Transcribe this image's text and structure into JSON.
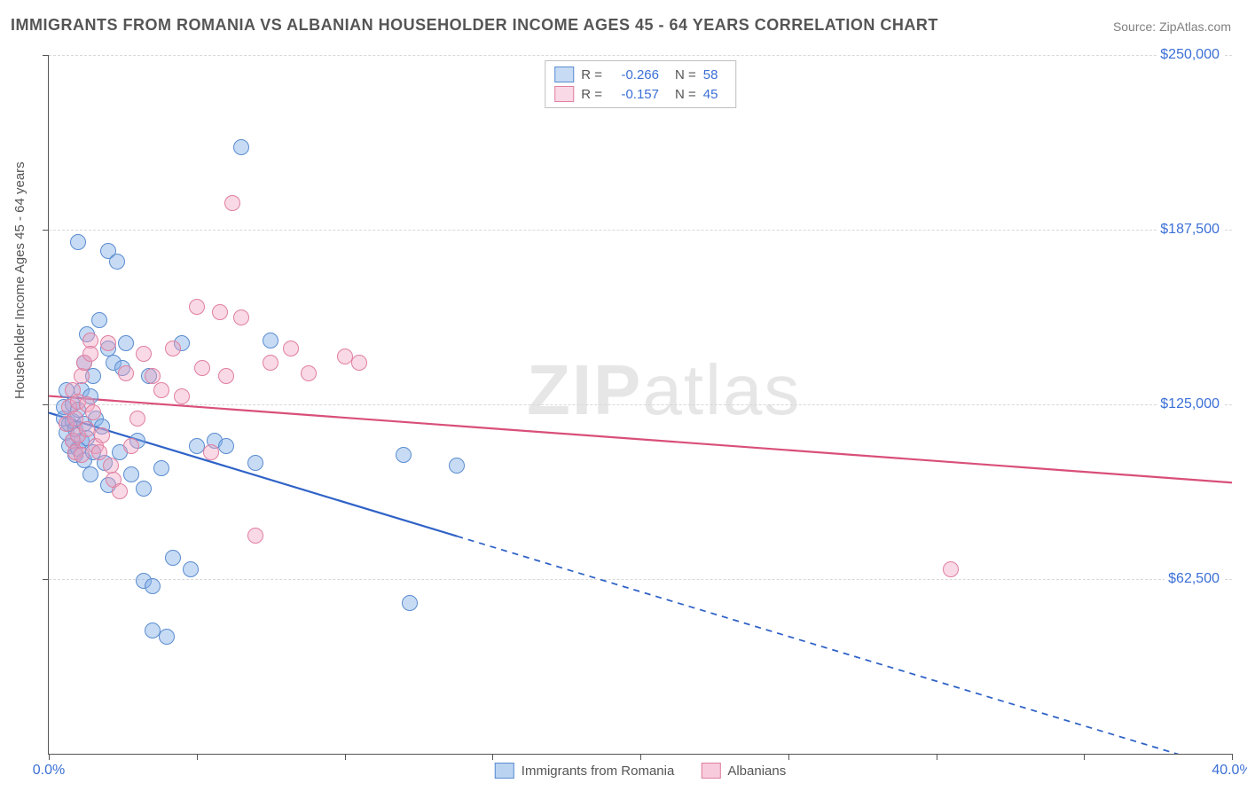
{
  "title": "IMMIGRANTS FROM ROMANIA VS ALBANIAN HOUSEHOLDER INCOME AGES 45 - 64 YEARS CORRELATION CHART",
  "source": "Source: ZipAtlas.com",
  "ylabel": "Householder Income Ages 45 - 64 years",
  "watermark_bold": "ZIP",
  "watermark_light": "atlas",
  "chart": {
    "type": "scatter",
    "background_color": "#ffffff",
    "grid_color": "#d8d8d8",
    "axis_color": "#555555",
    "marker_radius": 9,
    "marker_stroke_width": 1.4,
    "xlim": [
      0,
      40
    ],
    "ylim": [
      0,
      250000
    ],
    "xtick_positions": [
      0,
      5,
      10,
      15,
      20,
      25,
      30,
      35,
      40
    ],
    "xtick_labels": {
      "0": "0.0%",
      "40": "40.0%"
    },
    "ytick_positions": [
      62500,
      125000,
      187500,
      250000
    ],
    "ytick_labels": {
      "62500": "$62,500",
      "125000": "$125,000",
      "187500": "$187,500",
      "250000": "$250,000"
    },
    "label_color": "#3b6fd6",
    "label_fontsize": 16
  },
  "series": [
    {
      "name": "Immigrants from Romania",
      "fill": "rgba(130,175,230,0.45)",
      "stroke": "#5a8cd0",
      "trend": {
        "color": "#2f62c7",
        "width": 2.2,
        "y0": 122000,
        "y40": -6000,
        "x_solid_end": 13.8
      },
      "stats": {
        "R": "-0.266",
        "N": "58"
      },
      "points": [
        [
          0.5,
          120000
        ],
        [
          0.5,
          124000
        ],
        [
          0.6,
          130000
        ],
        [
          0.6,
          115000
        ],
        [
          0.7,
          110000
        ],
        [
          0.7,
          118000
        ],
        [
          0.8,
          125000
        ],
        [
          0.8,
          112000
        ],
        [
          0.8,
          119000
        ],
        [
          0.9,
          107000
        ],
        [
          0.9,
          116000
        ],
        [
          1.0,
          123000
        ],
        [
          1.0,
          109000
        ],
        [
          1.1,
          130000
        ],
        [
          1.1,
          112000
        ],
        [
          1.2,
          118000
        ],
        [
          1.2,
          105000
        ],
        [
          1.2,
          140000
        ],
        [
          1.3,
          150000
        ],
        [
          1.3,
          113000
        ],
        [
          1.4,
          128000
        ],
        [
          1.4,
          100000
        ],
        [
          1.5,
          135000
        ],
        [
          1.5,
          108000
        ],
        [
          1.6,
          120000
        ],
        [
          1.7,
          155000
        ],
        [
          1.8,
          117000
        ],
        [
          1.9,
          104000
        ],
        [
          1.0,
          183000
        ],
        [
          2.0,
          180000
        ],
        [
          2.0,
          145000
        ],
        [
          2.0,
          96000
        ],
        [
          2.2,
          140000
        ],
        [
          2.4,
          108000
        ],
        [
          2.5,
          138000
        ],
        [
          2.6,
          147000
        ],
        [
          2.8,
          100000
        ],
        [
          3.0,
          112000
        ],
        [
          3.2,
          95000
        ],
        [
          3.2,
          62000
        ],
        [
          3.4,
          135000
        ],
        [
          3.5,
          60000
        ],
        [
          3.8,
          102000
        ],
        [
          4.0,
          42000
        ],
        [
          4.2,
          70000
        ],
        [
          4.5,
          147000
        ],
        [
          4.8,
          66000
        ],
        [
          5.0,
          110000
        ],
        [
          3.5,
          44000
        ],
        [
          5.6,
          112000
        ],
        [
          6.0,
          110000
        ],
        [
          6.5,
          217000
        ],
        [
          7.0,
          104000
        ],
        [
          7.5,
          148000
        ],
        [
          12.0,
          107000
        ],
        [
          12.2,
          54000
        ],
        [
          13.8,
          103000
        ],
        [
          2.3,
          176000
        ]
      ]
    },
    {
      "name": "Albanians",
      "fill": "rgba(240,160,190,0.40)",
      "stroke": "#e07fa0",
      "trend": {
        "color": "#d94f79",
        "width": 2.2,
        "y0": 128000,
        "y40": 97000,
        "x_solid_end": 40
      },
      "stats": {
        "R": "-0.157",
        "N": "45"
      },
      "points": [
        [
          0.6,
          118000
        ],
        [
          0.7,
          124000
        ],
        [
          0.8,
          112000
        ],
        [
          0.8,
          130000
        ],
        [
          0.9,
          108000
        ],
        [
          0.9,
          120000
        ],
        [
          1.0,
          126000
        ],
        [
          1.0,
          114000
        ],
        [
          1.1,
          107000
        ],
        [
          1.1,
          135000
        ],
        [
          1.2,
          140000
        ],
        [
          1.3,
          116000
        ],
        [
          1.3,
          125000
        ],
        [
          1.4,
          148000
        ],
        [
          1.5,
          122000
        ],
        [
          1.6,
          110000
        ],
        [
          1.7,
          108000
        ],
        [
          1.8,
          114000
        ],
        [
          1.4,
          143000
        ],
        [
          2.0,
          147000
        ],
        [
          2.1,
          103000
        ],
        [
          2.2,
          98000
        ],
        [
          2.4,
          94000
        ],
        [
          2.6,
          136000
        ],
        [
          2.8,
          110000
        ],
        [
          3.0,
          120000
        ],
        [
          3.2,
          143000
        ],
        [
          3.5,
          135000
        ],
        [
          3.8,
          130000
        ],
        [
          4.2,
          145000
        ],
        [
          4.5,
          128000
        ],
        [
          5.0,
          160000
        ],
        [
          5.2,
          138000
        ],
        [
          5.5,
          108000
        ],
        [
          5.8,
          158000
        ],
        [
          6.0,
          135000
        ],
        [
          6.2,
          197000
        ],
        [
          6.5,
          156000
        ],
        [
          7.0,
          78000
        ],
        [
          7.5,
          140000
        ],
        [
          8.2,
          145000
        ],
        [
          8.8,
          136000
        ],
        [
          10.0,
          142000
        ],
        [
          10.5,
          140000
        ],
        [
          30.5,
          66000
        ]
      ]
    }
  ],
  "legend_bottom": {
    "items": [
      {
        "label": "Immigrants from Romania",
        "fill": "rgba(130,175,230,0.55)",
        "stroke": "#5a8cd0"
      },
      {
        "label": "Albanians",
        "fill": "rgba(240,160,190,0.55)",
        "stroke": "#e07fa0"
      }
    ]
  }
}
